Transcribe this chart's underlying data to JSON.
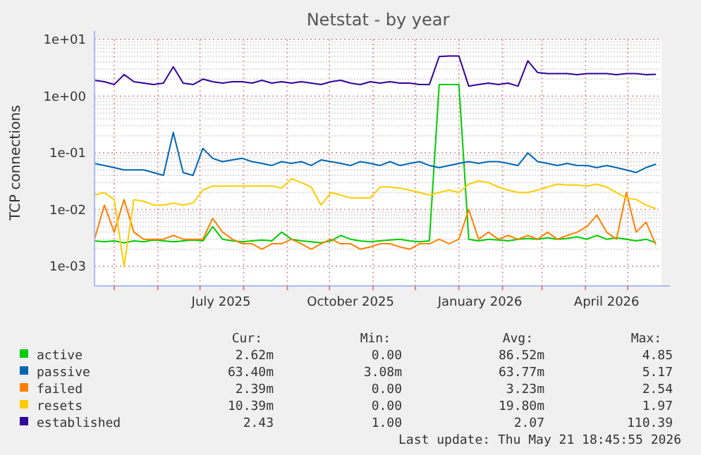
{
  "chart_data": {
    "type": "line",
    "title": "Netstat - by year",
    "ylabel": "TCP connections",
    "log": "y",
    "grid": true,
    "legend": "bottom",
    "line_style": "solid",
    "marker": "none",
    "xlim": [
      "2025-04-17",
      "2026-05-25"
    ],
    "xticks": [
      {
        "value": "2025-05-01",
        "label": null
      },
      {
        "value": "2025-06-01",
        "label": null
      },
      {
        "value": "2025-07-01",
        "label": null
      },
      {
        "value": "2025-07-16",
        "label": "July 2025"
      },
      {
        "value": "2025-08-01",
        "label": null
      },
      {
        "value": "2025-09-01",
        "label": null
      },
      {
        "value": "2025-10-01",
        "label": null
      },
      {
        "value": "2025-10-16",
        "label": "October 2025"
      },
      {
        "value": "2025-11-01",
        "label": null
      },
      {
        "value": "2025-12-01",
        "label": null
      },
      {
        "value": "2026-01-01",
        "label": null
      },
      {
        "value": "2026-01-16",
        "label": "January 2026"
      },
      {
        "value": "2026-02-01",
        "label": null
      },
      {
        "value": "2026-03-01",
        "label": null
      },
      {
        "value": "2026-04-01",
        "label": null
      },
      {
        "value": "2026-04-16",
        "label": "April 2026"
      },
      {
        "value": "2026-05-01",
        "label": null
      }
    ],
    "ylim": [
      0.00045,
      10
    ],
    "yticks": [
      {
        "value": 0.001,
        "label": "1e-03"
      },
      {
        "value": 0.01,
        "label": "1e-02"
      },
      {
        "value": 0.1,
        "label": "1e-01"
      },
      {
        "value": 1,
        "label": "1e+00"
      },
      {
        "value": 10,
        "label": "1e+01"
      }
    ],
    "x": [
      "2025-04-17",
      "2025-04-24",
      "2025-05-01",
      "2025-05-08",
      "2025-05-15",
      "2025-05-22",
      "2025-05-29",
      "2025-06-05",
      "2025-06-12",
      "2025-06-19",
      "2025-06-26",
      "2025-07-03",
      "2025-07-10",
      "2025-07-17",
      "2025-07-24",
      "2025-07-31",
      "2025-08-07",
      "2025-08-14",
      "2025-08-21",
      "2025-08-28",
      "2025-09-04",
      "2025-09-11",
      "2025-09-18",
      "2025-09-25",
      "2025-10-02",
      "2025-10-09",
      "2025-10-16",
      "2025-10-23",
      "2025-10-30",
      "2025-11-06",
      "2025-11-13",
      "2025-11-20",
      "2025-11-27",
      "2025-12-04",
      "2025-12-11",
      "2025-12-18",
      "2025-12-25",
      "2026-01-01",
      "2026-01-08",
      "2026-01-15",
      "2026-01-22",
      "2026-01-29",
      "2026-02-05",
      "2026-02-12",
      "2026-02-19",
      "2026-02-26",
      "2026-03-05",
      "2026-03-12",
      "2026-03-19",
      "2026-03-26",
      "2026-04-02",
      "2026-04-09",
      "2026-04-16",
      "2026-04-23",
      "2026-04-30",
      "2026-05-07",
      "2026-05-14",
      "2026-05-21"
    ],
    "series": [
      {
        "name": "active",
        "color": "#00cc00",
        "values": [
          0.0028,
          0.0027,
          0.0028,
          0.0026,
          0.0028,
          0.0027,
          0.0029,
          0.0028,
          0.0027,
          0.0028,
          0.0029,
          0.0028,
          0.005,
          0.003,
          0.0028,
          0.0027,
          0.0028,
          0.0029,
          0.0028,
          0.004,
          0.003,
          0.0028,
          0.0027,
          0.0026,
          0.0028,
          0.0035,
          0.003,
          0.0028,
          0.0027,
          0.0028,
          0.0029,
          0.003,
          0.0028,
          0.0027,
          0.0028,
          1.6,
          1.6,
          1.6,
          0.003,
          0.0028,
          0.003,
          0.0029,
          0.0028,
          0.003,
          0.0031,
          0.003,
          0.0032,
          0.003,
          0.0031,
          0.0033,
          0.003,
          0.0035,
          0.003,
          0.0032,
          0.003,
          0.0028,
          0.003,
          0.0026
        ]
      },
      {
        "name": "passive",
        "color": "#0066b3",
        "values": [
          0.065,
          0.06,
          0.055,
          0.05,
          0.05,
          0.05,
          0.045,
          0.04,
          0.23,
          0.045,
          0.04,
          0.12,
          0.08,
          0.07,
          0.075,
          0.08,
          0.07,
          0.065,
          0.06,
          0.07,
          0.065,
          0.07,
          0.06,
          0.075,
          0.07,
          0.065,
          0.06,
          0.07,
          0.065,
          0.06,
          0.07,
          0.06,
          0.065,
          0.07,
          0.06,
          0.055,
          0.06,
          0.065,
          0.07,
          0.065,
          0.07,
          0.07,
          0.065,
          0.06,
          0.1,
          0.07,
          0.065,
          0.06,
          0.065,
          0.06,
          0.06,
          0.055,
          0.06,
          0.055,
          0.05,
          0.045,
          0.055,
          0.0634
        ]
      },
      {
        "name": "failed",
        "color": "#ff8000",
        "values": [
          0.003,
          0.012,
          0.004,
          0.015,
          0.004,
          0.003,
          0.003,
          0.003,
          0.0035,
          0.003,
          0.003,
          0.003,
          0.007,
          0.004,
          0.003,
          0.0025,
          0.0025,
          0.002,
          0.0025,
          0.0025,
          0.003,
          0.0025,
          0.002,
          0.0025,
          0.003,
          0.0025,
          0.0025,
          0.002,
          0.0022,
          0.0025,
          0.0025,
          0.0022,
          0.002,
          0.0025,
          0.0025,
          0.003,
          0.0025,
          0.003,
          0.01,
          0.003,
          0.004,
          0.003,
          0.0035,
          0.003,
          0.0035,
          0.003,
          0.004,
          0.003,
          0.0035,
          0.004,
          0.005,
          0.008,
          0.004,
          0.003,
          0.02,
          0.004,
          0.006,
          0.0024
        ]
      },
      {
        "name": "resets",
        "color": "#ffcc00",
        "values": [
          0.018,
          0.02,
          0.015,
          0.001,
          0.015,
          0.014,
          0.012,
          0.012,
          0.013,
          0.012,
          0.013,
          0.022,
          0.026,
          0.026,
          0.026,
          0.026,
          0.026,
          0.026,
          0.026,
          0.024,
          0.035,
          0.03,
          0.025,
          0.012,
          0.02,
          0.018,
          0.016,
          0.016,
          0.016,
          0.025,
          0.025,
          0.024,
          0.022,
          0.02,
          0.018,
          0.02,
          0.022,
          0.02,
          0.028,
          0.032,
          0.03,
          0.025,
          0.022,
          0.02,
          0.02,
          0.022,
          0.025,
          0.028,
          0.027,
          0.027,
          0.026,
          0.028,
          0.025,
          0.02,
          0.016,
          0.015,
          0.012,
          0.0104
        ]
      },
      {
        "name": "established",
        "color": "#330099",
        "values": [
          1.9,
          1.8,
          1.6,
          2.4,
          1.8,
          1.7,
          1.6,
          1.7,
          3.3,
          1.7,
          1.6,
          2.0,
          1.8,
          1.7,
          1.8,
          1.8,
          1.7,
          1.9,
          1.7,
          1.8,
          1.7,
          1.8,
          1.7,
          1.6,
          1.8,
          1.9,
          1.7,
          1.6,
          1.8,
          1.7,
          1.8,
          1.7,
          1.7,
          1.6,
          1.6,
          5.0,
          5.1,
          5.1,
          1.5,
          1.6,
          1.7,
          1.6,
          1.7,
          1.5,
          4.2,
          2.6,
          2.5,
          2.5,
          2.5,
          2.4,
          2.5,
          2.5,
          2.5,
          2.4,
          2.5,
          2.5,
          2.4,
          2.43
        ]
      }
    ],
    "annotations": [
      "Cur:",
      "Min:",
      "Avg:",
      "Max:",
      "2.62m",
      "0.00",
      "86.52m",
      "4.85",
      "63.40m",
      "3.08m",
      "63.77m",
      "5.17",
      "2.39m",
      "0.00",
      "3.23m",
      "2.54",
      "10.39m",
      "0.00",
      "19.80m",
      "1.97",
      "2.43",
      "1.00",
      "2.07",
      "110.39",
      "Last update: Thu May 21 18:45:55 2026"
    ]
  }
}
